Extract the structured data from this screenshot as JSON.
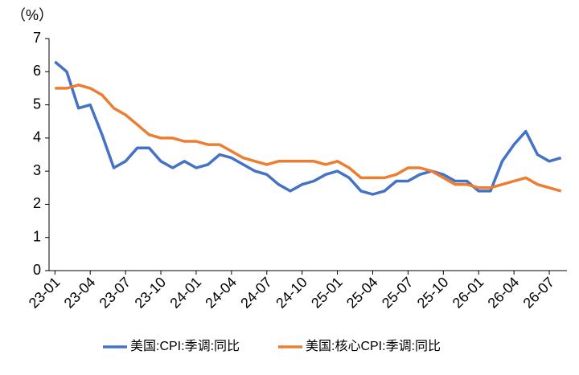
{
  "chart_data": {
    "type": "line",
    "y_label": "（%）",
    "categories": [
      "23-01",
      null,
      null,
      "23-04",
      null,
      null,
      "23-07",
      null,
      null,
      "23-10",
      null,
      null,
      "24-01",
      null,
      null,
      "24-04",
      null,
      null,
      "24-07",
      null,
      null,
      "24-10",
      null,
      null,
      "25-01",
      null,
      null,
      "25-04",
      null,
      null,
      "25-07",
      null,
      null,
      "25-10",
      null,
      null,
      "26-01",
      null,
      null,
      "26-04",
      null,
      null,
      "26-07",
      null
    ],
    "series": [
      {
        "name": "美国:CPI:季调:同比",
        "color": "#4472c4",
        "values": [
          6.3,
          6.0,
          4.9,
          5.0,
          4.1,
          3.1,
          3.3,
          3.7,
          3.7,
          3.3,
          3.1,
          3.3,
          3.1,
          3.2,
          3.5,
          3.4,
          3.2,
          3.0,
          2.9,
          2.6,
          2.4,
          2.6,
          2.7,
          2.9,
          3.0,
          2.8,
          2.4,
          2.3,
          2.4,
          2.7,
          2.7,
          2.9,
          3.0,
          2.9,
          2.7,
          2.7,
          2.4,
          2.4,
          3.3,
          3.8,
          4.2,
          3.5,
          3.3,
          3.4
        ]
      },
      {
        "name": "美国:核心CPI:季调:同比",
        "color": "#ed7d31",
        "values": [
          5.5,
          5.5,
          5.6,
          5.5,
          5.3,
          4.9,
          4.7,
          4.4,
          4.1,
          4.0,
          4.0,
          3.9,
          3.9,
          3.8,
          3.8,
          3.6,
          3.4,
          3.3,
          3.2,
          3.3,
          3.3,
          3.3,
          3.3,
          3.2,
          3.3,
          3.1,
          2.8,
          2.8,
          2.8,
          2.9,
          3.1,
          3.1,
          3.0,
          2.8,
          2.6,
          2.6,
          2.5,
          2.5,
          2.6,
          2.7,
          2.8,
          2.6,
          2.5,
          2.4
        ]
      }
    ],
    "ylim": [
      0,
      7
    ],
    "yticks": [
      0,
      1,
      2,
      3,
      4,
      5,
      6,
      7
    ],
    "legend": "bottom"
  }
}
